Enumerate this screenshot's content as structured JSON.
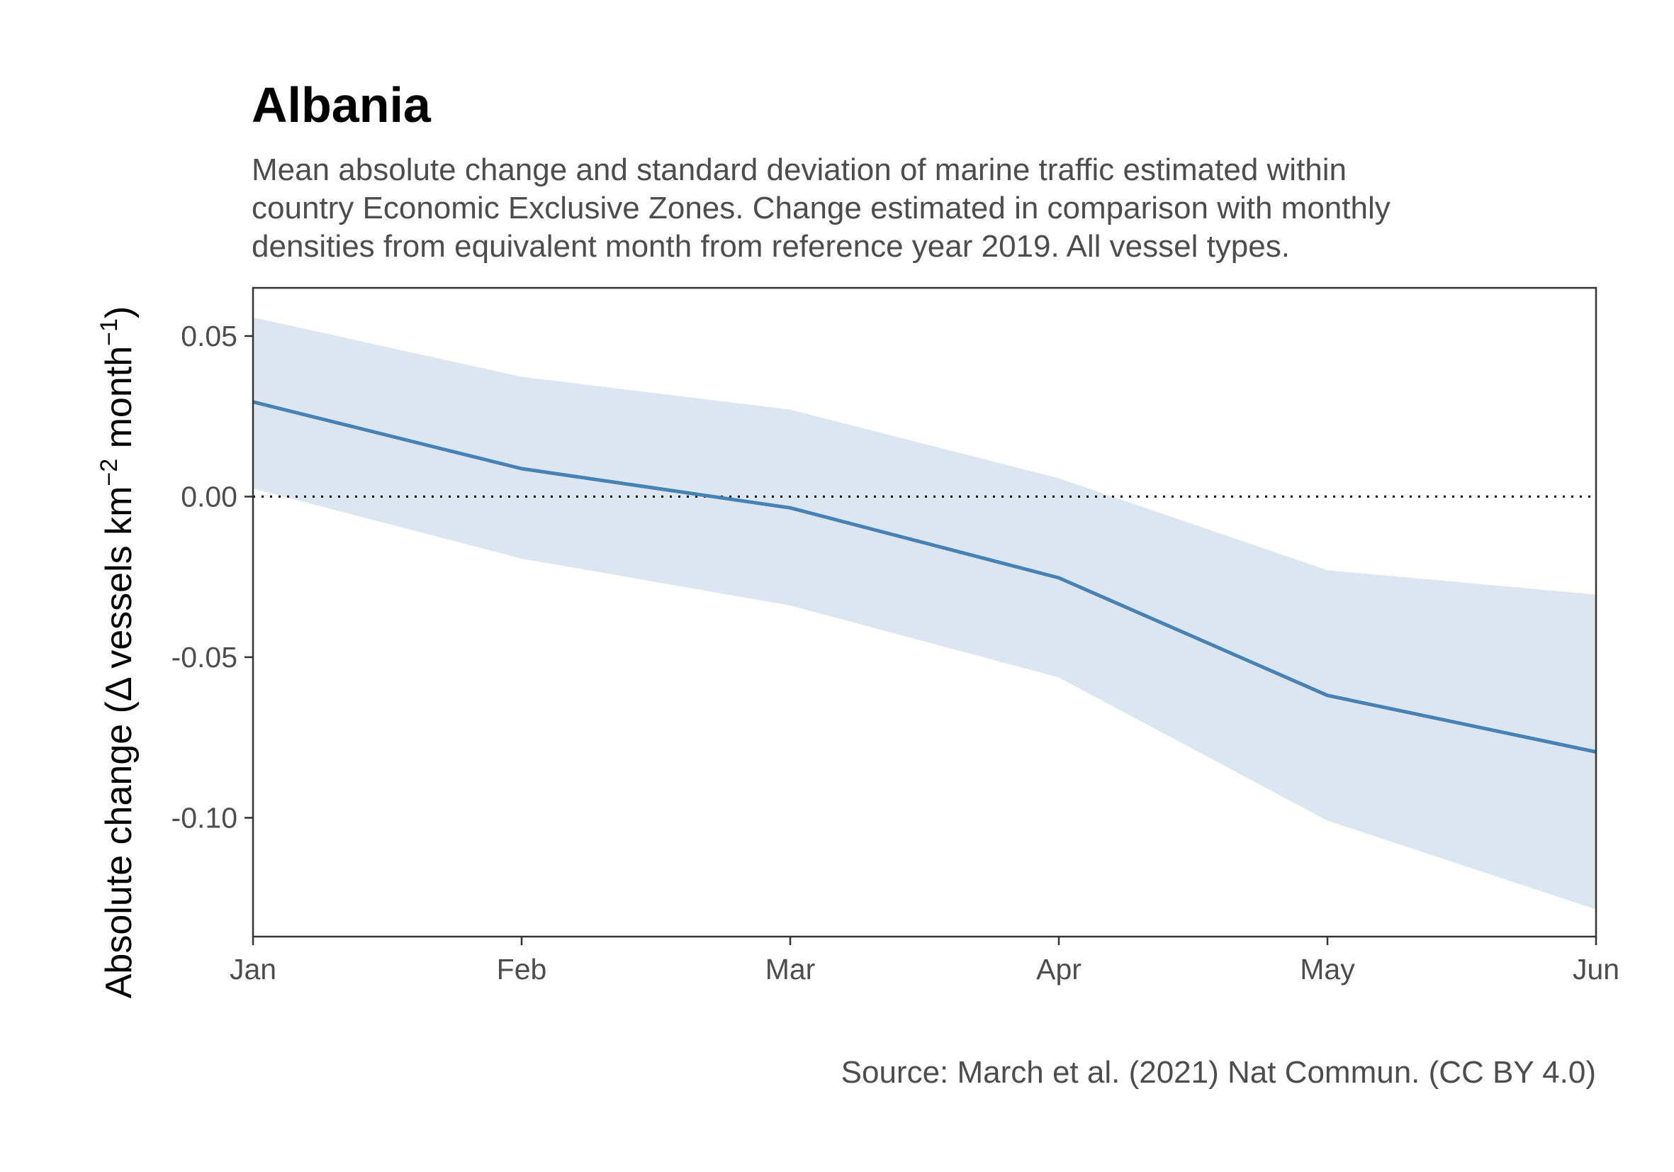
{
  "chart_data": {
    "type": "line",
    "title": "Albania",
    "subtitle_lines": [
      "Mean absolute change and standard deviation of marine traffic estimated within",
      "country Economic Exclusive Zones. Change estimated in comparison with monthly",
      "densities from equivalent month from reference year 2019. All vessel types."
    ],
    "ylabel": {
      "prefix": "Absolute change (",
      "delta": "Δ",
      "units_a": " vessels km",
      "sup_a": "−2",
      "units_b": " month",
      "sup_b": "−1",
      "suffix": ")"
    },
    "caption": "Source: March et al. (2021) Nat Commun. (CC BY 4.0)",
    "categories": [
      "Jan",
      "Feb",
      "Mar",
      "Apr",
      "May",
      "Jun"
    ],
    "series": [
      {
        "values": [
          0.0295,
          0.0087,
          -0.0035,
          -0.0253,
          -0.0619,
          -0.0795
        ],
        "sd_upper": [
          0.0558,
          0.0373,
          0.0271,
          0.0057,
          -0.0229,
          -0.0305
        ],
        "sd_lower": [
          0.0025,
          -0.0193,
          -0.0339,
          -0.0563,
          -0.1009,
          -0.1285
        ]
      }
    ],
    "yticks": [
      0.05,
      0.0,
      -0.05,
      -0.1
    ],
    "ytick_labels": [
      "0.05",
      "0.00",
      "-0.05",
      "-0.10"
    ],
    "ylim": [
      -0.137,
      0.065
    ],
    "reference_line": 0,
    "grid": false,
    "colors": {
      "line": "#4682b4",
      "band": "#dce6f0",
      "reference": "#000000",
      "axis": "#333333"
    }
  }
}
